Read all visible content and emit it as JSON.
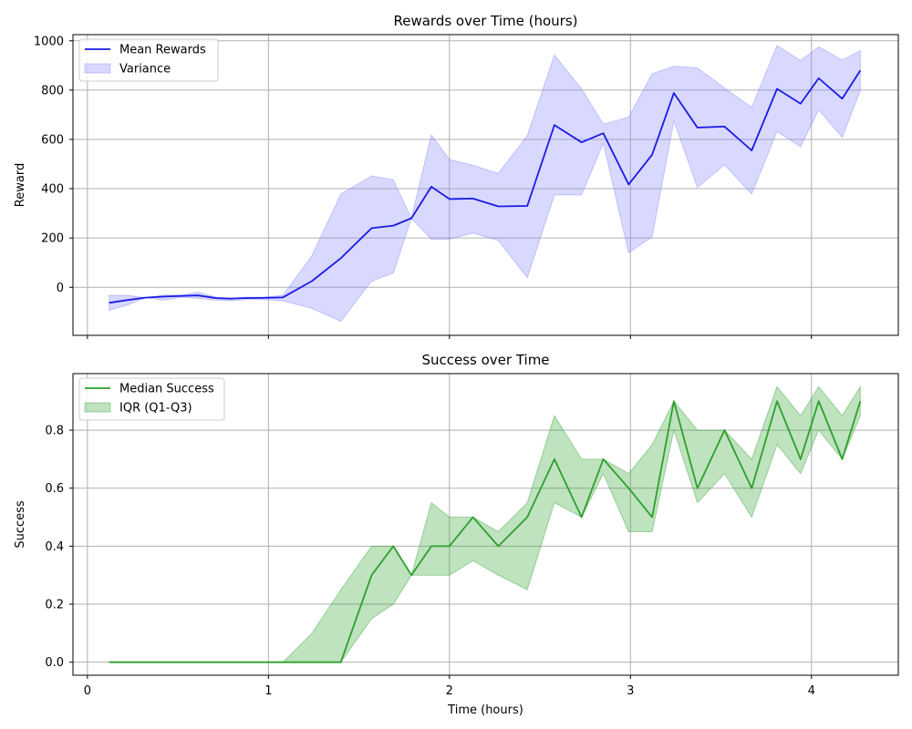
{
  "chart_data": [
    {
      "type": "line",
      "title": "Rewards over Time (hours)",
      "xlabel": "",
      "ylabel": "Reward",
      "xlim": [
        -0.08,
        4.48
      ],
      "ylim": [
        -195,
        1025
      ],
      "x_ticks": [
        0,
        1,
        2,
        3,
        4
      ],
      "y_ticks": [
        0,
        200,
        400,
        600,
        800,
        1000
      ],
      "grid": true,
      "legend_position": "upper-left",
      "x": [
        0.12,
        0.22,
        0.32,
        0.42,
        0.52,
        0.61,
        0.71,
        0.79,
        0.87,
        0.97,
        1.08,
        1.24,
        1.4,
        1.57,
        1.69,
        1.79,
        1.9,
        2.0,
        2.13,
        2.27,
        2.43,
        2.58,
        2.73,
        2.85,
        2.99,
        3.12,
        3.24,
        3.37,
        3.52,
        3.67,
        3.81,
        3.94,
        4.04,
        4.17,
        4.27
      ],
      "series": [
        {
          "name": "Mean Rewards",
          "kind": "line",
          "color": "#1a1ae6",
          "values": [
            -63,
            -52,
            -42,
            -38,
            -35,
            -33,
            -44,
            -46,
            -44,
            -43,
            -41,
            25,
            118,
            240,
            250,
            280,
            408,
            358,
            360,
            328,
            330,
            658,
            588,
            625,
            417,
            538,
            788,
            648,
            652,
            555,
            805,
            745,
            848,
            765,
            880
          ]
        },
        {
          "name": "Variance",
          "kind": "band",
          "color": "#8080ff",
          "upper": [
            -33,
            -33,
            -42,
            -32,
            -32,
            -20,
            -40,
            -45,
            -40,
            -40,
            -33,
            128,
            378,
            452,
            436,
            280,
            618,
            518,
            495,
            462,
            615,
            942,
            805,
            662,
            690,
            866,
            897,
            890,
            808,
            730,
            980,
            920,
            975,
            922,
            960
          ],
          "lower": [
            -93,
            -72,
            -42,
            -52,
            -40,
            -45,
            -52,
            -55,
            -50,
            -50,
            -55,
            -85,
            -138,
            25,
            58,
            280,
            195,
            195,
            220,
            190,
            38,
            375,
            375,
            585,
            140,
            205,
            675,
            405,
            497,
            378,
            632,
            570,
            720,
            608,
            798
          ]
        }
      ]
    },
    {
      "type": "line",
      "title": "Success over Time",
      "xlabel": "Time (hours)",
      "ylabel": "Success",
      "xlim": [
        -0.08,
        4.48
      ],
      "ylim": [
        -0.045,
        0.995
      ],
      "x_ticks": [
        0,
        1,
        2,
        3,
        4
      ],
      "y_ticks": [
        0.0,
        0.2,
        0.4,
        0.6,
        0.8
      ],
      "grid": true,
      "legend_position": "upper-left",
      "x": [
        0.12,
        0.22,
        0.32,
        0.42,
        0.52,
        0.61,
        0.71,
        0.79,
        0.87,
        0.97,
        1.08,
        1.24,
        1.4,
        1.57,
        1.69,
        1.79,
        1.9,
        2.0,
        2.13,
        2.27,
        2.43,
        2.58,
        2.73,
        2.85,
        2.99,
        3.12,
        3.24,
        3.37,
        3.52,
        3.67,
        3.81,
        3.94,
        4.04,
        4.17,
        4.27
      ],
      "series": [
        {
          "name": "Median Success",
          "kind": "line",
          "color": "#2ca02c",
          "values": [
            0,
            0,
            0,
            0,
            0,
            0,
            0,
            0,
            0,
            0,
            0,
            0,
            0,
            0.3,
            0.4,
            0.3,
            0.4,
            0.4,
            0.5,
            0.4,
            0.5,
            0.7,
            0.5,
            0.7,
            0.6,
            0.5,
            0.9,
            0.6,
            0.8,
            0.6,
            0.9,
            0.7,
            0.9,
            0.7,
            0.9
          ]
        },
        {
          "name": "IQR (Q1-Q3)",
          "kind": "band",
          "color": "#2ca02c",
          "upper": [
            0,
            0,
            0,
            0,
            0,
            0,
            0,
            0,
            0,
            0,
            0,
            0.1,
            0.25,
            0.4,
            0.4,
            0.3,
            0.55,
            0.5,
            0.5,
            0.45,
            0.55,
            0.85,
            0.7,
            0.7,
            0.65,
            0.75,
            0.9,
            0.8,
            0.8,
            0.7,
            0.95,
            0.85,
            0.95,
            0.85,
            0.95
          ],
          "lower": [
            0,
            0,
            0,
            0,
            0,
            0,
            0,
            0,
            0,
            0,
            0,
            0,
            0,
            0.15,
            0.2,
            0.3,
            0.3,
            0.3,
            0.35,
            0.3,
            0.25,
            0.55,
            0.5,
            0.65,
            0.45,
            0.45,
            0.8,
            0.55,
            0.65,
            0.5,
            0.75,
            0.65,
            0.8,
            0.7,
            0.85
          ]
        }
      ]
    }
  ]
}
